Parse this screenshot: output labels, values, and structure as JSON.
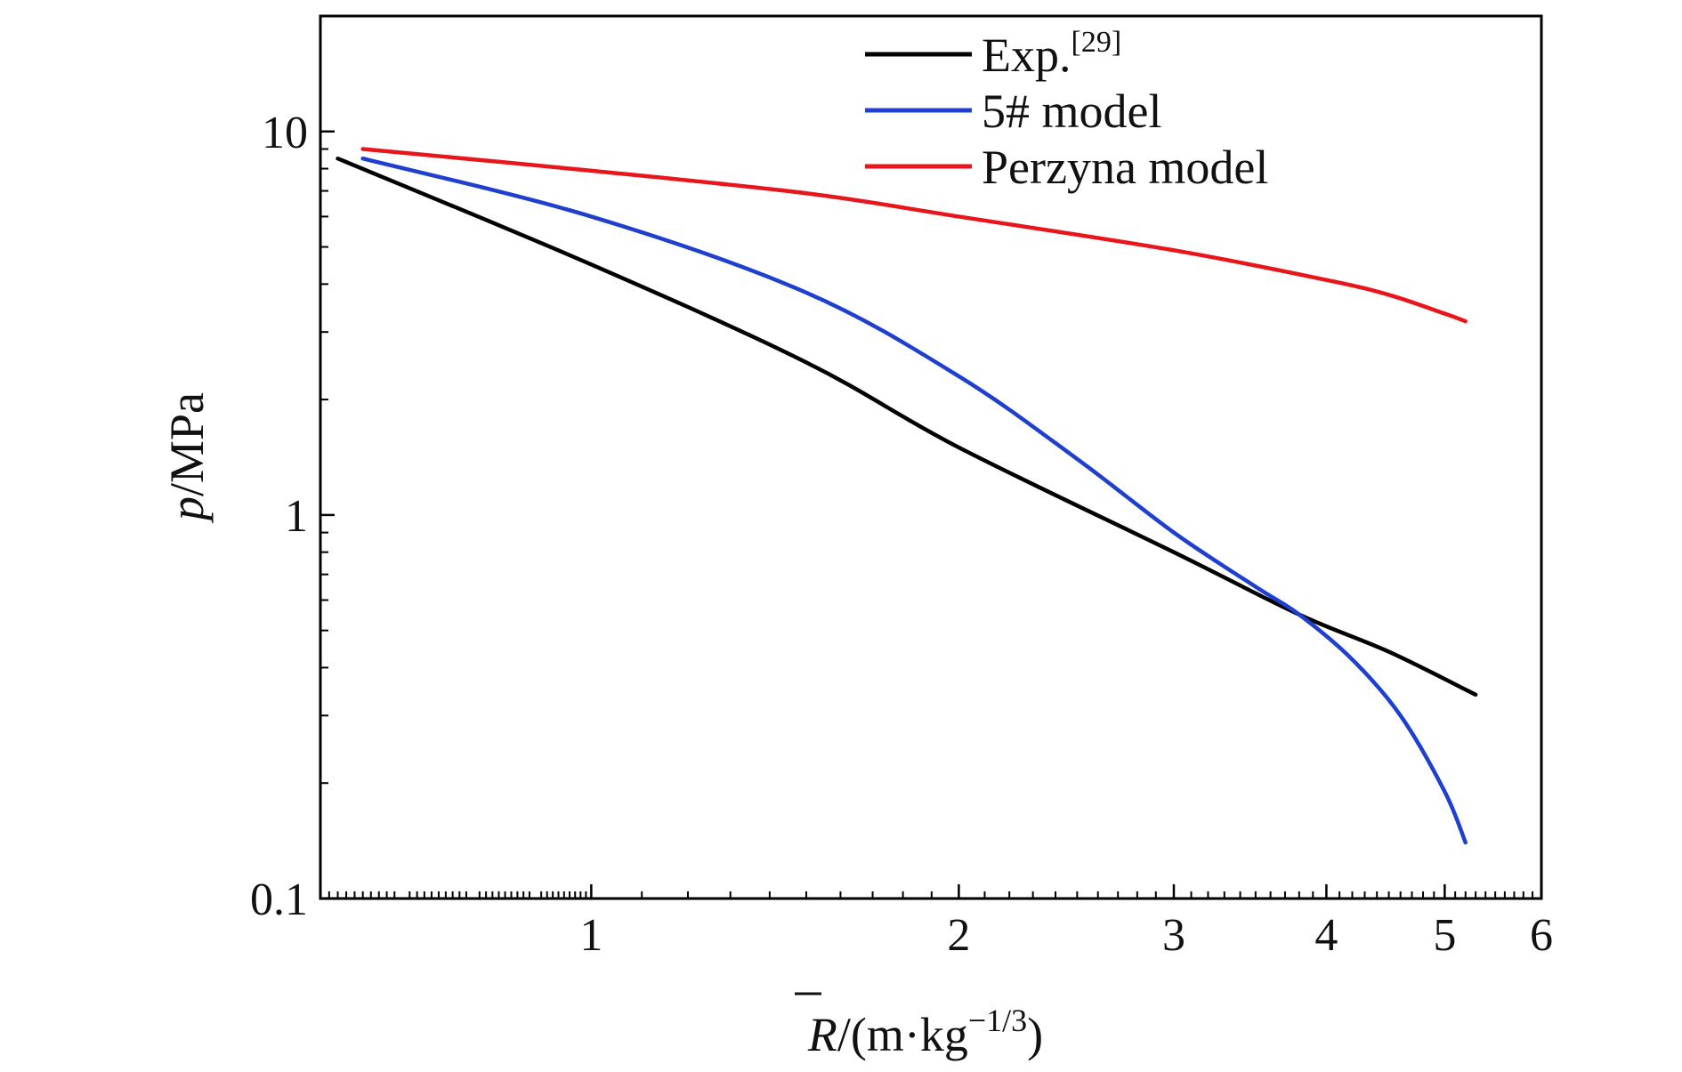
{
  "chart_data": {
    "type": "line",
    "title": "",
    "xlabel": {
      "symbol": "R",
      "rest": "/(m·kg",
      "exponent": "−1/3",
      "close": ")"
    },
    "ylabel": {
      "symbol": "p",
      "rest": "/MPa"
    },
    "x_scale": "log",
    "y_scale": "log",
    "xlim": [
      0.6,
      6
    ],
    "ylim": [
      0.1,
      20
    ],
    "x_ticks": [
      {
        "value": 1,
        "label": "1"
      },
      {
        "value": 2,
        "label": "2"
      },
      {
        "value": 3,
        "label": "3"
      },
      {
        "value": 4,
        "label": "4"
      },
      {
        "value": 5,
        "label": "5"
      },
      {
        "value": 6,
        "label": "6"
      }
    ],
    "y_ticks": [
      {
        "value": 0.1,
        "label": "0.1"
      },
      {
        "value": 1,
        "label": "1"
      },
      {
        "value": 10,
        "label": "10"
      }
    ],
    "grid": false,
    "legend": {
      "position": "top-right"
    },
    "series": [
      {
        "name": "Exp.",
        "ref": "[29]",
        "color": "#000000",
        "x": [
          0.62,
          1.0,
          1.5,
          2.0,
          3.0,
          3.8,
          4.5,
          5.3
        ],
        "y": [
          8.5,
          4.5,
          2.5,
          1.5,
          0.8,
          0.55,
          0.44,
          0.34
        ]
      },
      {
        "name": "5# model",
        "color": "#1f3fcf",
        "x": [
          0.65,
          1.0,
          1.5,
          2.0,
          2.5,
          3.0,
          3.5,
          3.8,
          4.2,
          4.6,
          5.0,
          5.2
        ],
        "y": [
          8.5,
          6.0,
          3.8,
          2.3,
          1.4,
          0.9,
          0.65,
          0.55,
          0.42,
          0.3,
          0.19,
          0.14
        ]
      },
      {
        "name": "Perzyna model",
        "color": "#e8151b",
        "x": [
          0.65,
          1.0,
          1.5,
          2.0,
          3.0,
          4.0,
          4.5,
          5.0,
          5.2
        ],
        "y": [
          9.0,
          7.9,
          6.9,
          6.0,
          4.9,
          4.1,
          3.75,
          3.35,
          3.2
        ]
      }
    ]
  }
}
